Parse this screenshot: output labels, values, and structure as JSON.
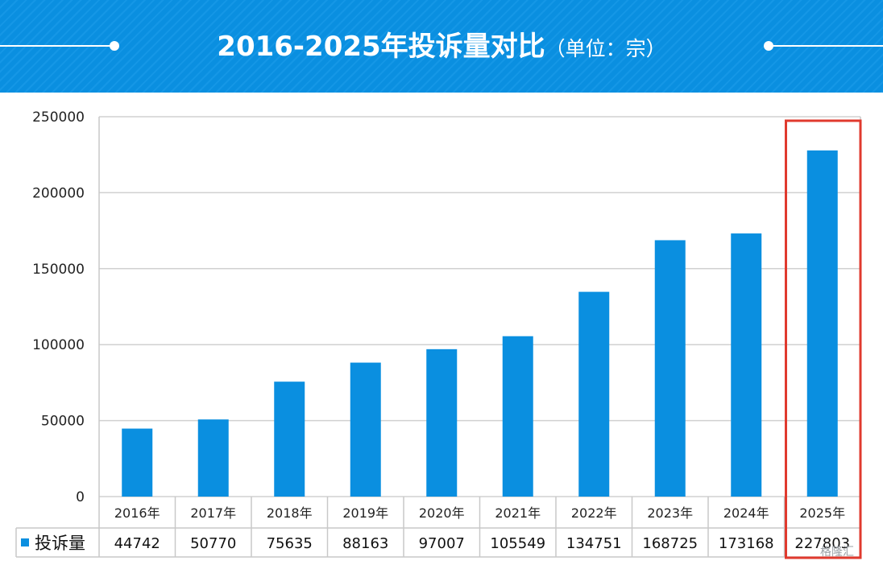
{
  "header": {
    "title": "2016-2025年投诉量对比",
    "unit": "（单位：宗）"
  },
  "chart_data": {
    "type": "bar",
    "categories": [
      "2016年",
      "2017年",
      "2018年",
      "2019年",
      "2020年",
      "2021年",
      "2022年",
      "2023年",
      "2024年",
      "2025年"
    ],
    "series": [
      {
        "name": "投诉量",
        "values": [
          44742,
          50770,
          75635,
          88163,
          97007,
          105549,
          134751,
          168725,
          173168,
          227803
        ]
      }
    ],
    "yticks": [
      "0",
      "50000",
      "100000",
      "150000",
      "200000",
      "250000"
    ],
    "ylim": [
      0,
      250000
    ],
    "grid": true,
    "data_table": true,
    "highlight_category": "2025年",
    "colors": {
      "bar": "#0a8fe0",
      "highlight_box": "#e03a2e",
      "header": "#0a8fe0"
    }
  },
  "watermark": "格隆汇"
}
